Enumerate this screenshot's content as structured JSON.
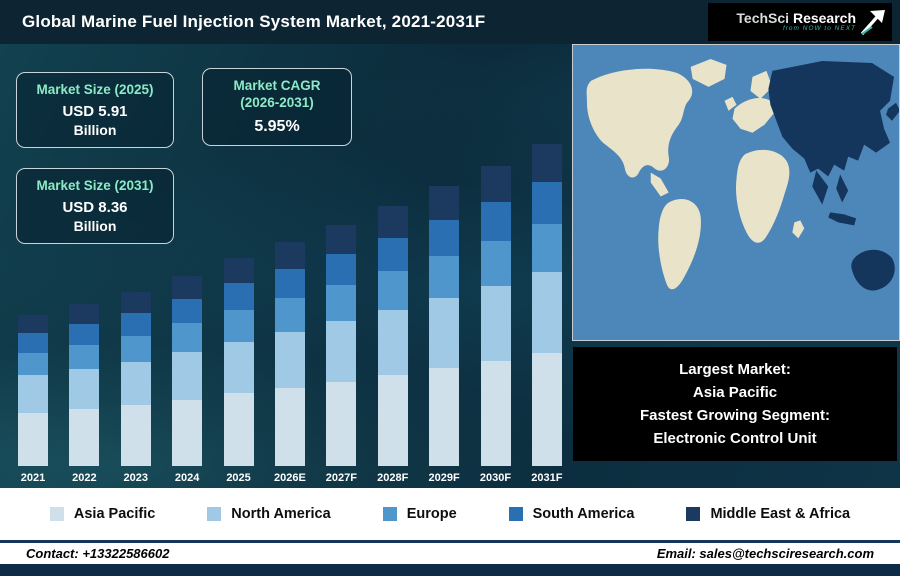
{
  "header": {
    "title": "Global Marine Fuel Injection System Market, 2021-2031F",
    "logo": {
      "brand_primary": "TechSci",
      "brand_secondary": "Research",
      "tagline": "from NOW to NEXT"
    }
  },
  "info_boxes": [
    {
      "title": "Market Size (2025)",
      "value": "USD 5.91",
      "unit": "Billion"
    },
    {
      "title": "Market CAGR",
      "subtitle": "(2026-2031)",
      "value": "5.95%"
    },
    {
      "title": "Market Size (2031)",
      "value": "USD 8.36",
      "unit": "Billion"
    }
  ],
  "chart_data": {
    "type": "bar",
    "stacked": true,
    "title": "Global Marine Fuel Injection System Market, 2021-2031F",
    "value_unit": "USD Billion",
    "categories": [
      "2021",
      "2022",
      "2023",
      "2024",
      "2025",
      "2026E",
      "2027F",
      "2028F",
      "2029F",
      "2030F",
      "2031F"
    ],
    "totals": [
      4.7,
      4.95,
      5.2,
      5.55,
      5.91,
      6.26,
      6.63,
      7.03,
      7.45,
      7.89,
      8.36
    ],
    "series": [
      {
        "name": "Asia Pacific",
        "color": "#cfe0ea",
        "values": [
          1.65,
          1.73,
          1.82,
          1.94,
          2.07,
          2.19,
          2.32,
          2.46,
          2.61,
          2.76,
          2.93
        ]
      },
      {
        "name": "North America",
        "color": "#9fc9e4",
        "values": [
          1.18,
          1.24,
          1.3,
          1.39,
          1.48,
          1.57,
          1.66,
          1.76,
          1.86,
          1.97,
          2.09
        ]
      },
      {
        "name": "Europe",
        "color": "#4f96cc",
        "values": [
          0.71,
          0.74,
          0.78,
          0.83,
          0.89,
          0.94,
          0.99,
          1.05,
          1.12,
          1.18,
          1.25
        ]
      },
      {
        "name": "South America",
        "color": "#2a6fb2",
        "values": [
          0.61,
          0.64,
          0.68,
          0.72,
          0.77,
          0.81,
          0.86,
          0.91,
          0.97,
          1.03,
          1.09
        ]
      },
      {
        "name": "Middle East & Africa",
        "color": "#1c3a60",
        "values": [
          0.56,
          0.59,
          0.62,
          0.67,
          0.71,
          0.75,
          0.8,
          0.84,
          0.89,
          0.95,
          1.0
        ]
      }
    ],
    "legend_position": "bottom",
    "grid": false
  },
  "map": {
    "ocean_color": "#4d86b8",
    "land_color": "#e9e4c9",
    "highlight_color": "#14355c",
    "highlighted_region": "Asia Pacific"
  },
  "callout_box": {
    "lines": [
      "Largest Market:",
      "Asia Pacific",
      "Fastest Growing Segment:",
      "Electronic Control Unit"
    ]
  },
  "legend": {
    "items": [
      {
        "label": "Asia Pacific",
        "color": "#cfe0ea"
      },
      {
        "label": "North America",
        "color": "#9fc9e4"
      },
      {
        "label": "Europe",
        "color": "#4f96cc"
      },
      {
        "label": "South America",
        "color": "#2a6fb2"
      },
      {
        "label": "Middle East & Africa",
        "color": "#1c3a60"
      }
    ]
  },
  "footer": {
    "contact": "Contact: +13322586602",
    "email": "Email: sales@techsciresearch.com"
  }
}
